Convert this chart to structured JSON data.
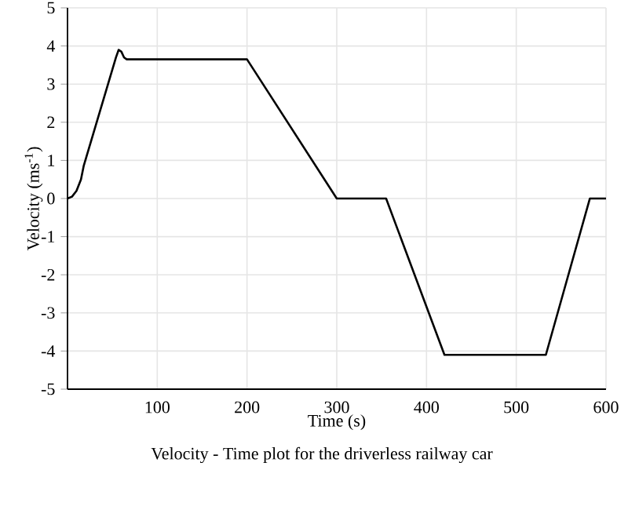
{
  "chart_data": {
    "type": "line",
    "xlabel": "Time (s)",
    "ylabel": "Velocity (ms$^{-1}$)",
    "annotations": [
      "Velocity - Time plot for the driverless railway car"
    ],
    "x": [
      0,
      5,
      10,
      15,
      18,
      54,
      57,
      60,
      63,
      66,
      200,
      300,
      355,
      420,
      533,
      582,
      600
    ],
    "series": [
      {
        "color": "#000000",
        "values": [
          0,
          0.05,
          0.2,
          0.5,
          0.85,
          3.7,
          3.9,
          3.85,
          3.7,
          3.65,
          3.65,
          0,
          0,
          -4.1,
          -4.1,
          0,
          0
        ]
      }
    ],
    "xlim": [
      0,
      600
    ],
    "xticks": [
      100,
      200,
      300,
      400,
      500,
      600
    ],
    "ylim": [
      -5,
      5
    ],
    "yticks": [
      -5,
      -4,
      -3,
      -2,
      -1,
      0,
      1,
      2,
      3,
      4,
      5
    ],
    "grid": true,
    "marker": "none",
    "line_style": "solid"
  }
}
